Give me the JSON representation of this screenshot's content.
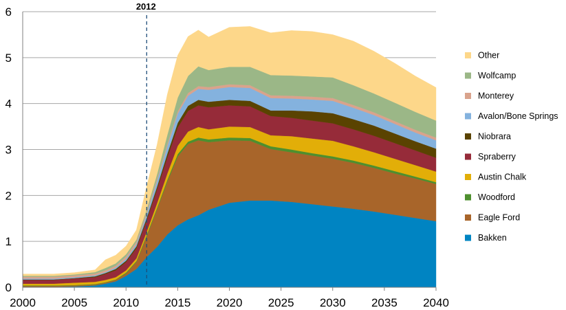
{
  "chart_data": {
    "type": "area",
    "stacked": true,
    "title": "",
    "xlabel": "",
    "ylabel": "",
    "xlim": [
      2000,
      2040
    ],
    "ylim": [
      0,
      6
    ],
    "grid": "horizontal",
    "legend_position": "right",
    "x_ticks": [
      2000,
      2005,
      2010,
      2015,
      2020,
      2025,
      2030,
      2035,
      2040
    ],
    "y_ticks": [
      0,
      1,
      2,
      3,
      4,
      5,
      6
    ],
    "annotation": {
      "label": "2012",
      "x": 2012,
      "style": "dashed vertical line"
    },
    "x": [
      2000,
      2003,
      2005,
      2007,
      2008,
      2009,
      2010,
      2011,
      2012,
      2013,
      2014,
      2015,
      2016,
      2017,
      2018,
      2020,
      2022,
      2024,
      2026,
      2028,
      2030,
      2032,
      2034,
      2036,
      2038,
      2040
    ],
    "series": [
      {
        "name": "Bakken",
        "color": "#0084C2",
        "values": [
          0.01,
          0.01,
          0.02,
          0.04,
          0.08,
          0.13,
          0.25,
          0.4,
          0.66,
          0.88,
          1.15,
          1.35,
          1.48,
          1.57,
          1.69,
          1.84,
          1.89,
          1.89,
          1.86,
          1.81,
          1.76,
          1.71,
          1.65,
          1.58,
          1.51,
          1.44
        ]
      },
      {
        "name": "Eagle Ford",
        "color": "#A8652A",
        "values": [
          0.02,
          0.02,
          0.02,
          0.02,
          0.02,
          0.03,
          0.05,
          0.15,
          0.45,
          0.82,
          1.15,
          1.5,
          1.64,
          1.63,
          1.47,
          1.36,
          1.3,
          1.12,
          1.08,
          1.06,
          1.04,
          1.0,
          0.95,
          0.9,
          0.86,
          0.81
        ]
      },
      {
        "name": "Woodford",
        "color": "#4E8F2E",
        "values": [
          0.01,
          0.01,
          0.01,
          0.01,
          0.01,
          0.01,
          0.02,
          0.02,
          0.03,
          0.03,
          0.04,
          0.05,
          0.05,
          0.06,
          0.06,
          0.06,
          0.06,
          0.06,
          0.06,
          0.05,
          0.05,
          0.05,
          0.05,
          0.05,
          0.04,
          0.04
        ]
      },
      {
        "name": "Austin Chalk",
        "color": "#E2AE08",
        "values": [
          0.04,
          0.04,
          0.05,
          0.05,
          0.05,
          0.05,
          0.05,
          0.06,
          0.07,
          0.1,
          0.14,
          0.18,
          0.22,
          0.23,
          0.22,
          0.24,
          0.24,
          0.24,
          0.29,
          0.32,
          0.34,
          0.31,
          0.29,
          0.27,
          0.25,
          0.23
        ]
      },
      {
        "name": "Spraberry",
        "color": "#962B39",
        "values": [
          0.08,
          0.08,
          0.09,
          0.1,
          0.13,
          0.15,
          0.18,
          0.22,
          0.25,
          0.3,
          0.35,
          0.4,
          0.45,
          0.47,
          0.48,
          0.46,
          0.45,
          0.42,
          0.4,
          0.39,
          0.38,
          0.37,
          0.36,
          0.34,
          0.32,
          0.3
        ]
      },
      {
        "name": "Niobrara",
        "color": "#5A4301",
        "values": [
          0.01,
          0.01,
          0.01,
          0.02,
          0.02,
          0.03,
          0.03,
          0.04,
          0.05,
          0.06,
          0.08,
          0.1,
          0.11,
          0.12,
          0.12,
          0.12,
          0.12,
          0.12,
          0.16,
          0.2,
          0.22,
          0.22,
          0.22,
          0.21,
          0.2,
          0.2
        ]
      },
      {
        "name": "Avalon/Bone Springs",
        "color": "#84B2DE",
        "values": [
          0.02,
          0.02,
          0.02,
          0.02,
          0.02,
          0.03,
          0.04,
          0.05,
          0.08,
          0.12,
          0.16,
          0.2,
          0.22,
          0.24,
          0.26,
          0.28,
          0.28,
          0.27,
          0.26,
          0.26,
          0.27,
          0.25,
          0.23,
          0.21,
          0.19,
          0.18
        ]
      },
      {
        "name": "Monterey",
        "color": "#D9A38C",
        "values": [
          0.04,
          0.04,
          0.04,
          0.04,
          0.04,
          0.04,
          0.05,
          0.05,
          0.05,
          0.05,
          0.05,
          0.05,
          0.06,
          0.06,
          0.06,
          0.06,
          0.06,
          0.06,
          0.06,
          0.06,
          0.06,
          0.06,
          0.06,
          0.06,
          0.06,
          0.06
        ]
      },
      {
        "name": "Wolfcamp",
        "color": "#9BB787",
        "values": [
          0.02,
          0.02,
          0.02,
          0.03,
          0.05,
          0.05,
          0.05,
          0.05,
          0.06,
          0.1,
          0.2,
          0.3,
          0.37,
          0.43,
          0.37,
          0.38,
          0.4,
          0.44,
          0.44,
          0.44,
          0.45,
          0.43,
          0.41,
          0.4,
          0.39,
          0.37
        ]
      },
      {
        "name": "Other",
        "color": "#FDD78A",
        "values": [
          0.04,
          0.04,
          0.04,
          0.05,
          0.18,
          0.18,
          0.18,
          0.21,
          0.5,
          0.64,
          0.88,
          0.92,
          0.86,
          0.79,
          0.72,
          0.86,
          0.88,
          0.92,
          0.98,
          0.98,
          0.93,
          0.96,
          0.92,
          0.86,
          0.78,
          0.72
        ]
      }
    ]
  }
}
